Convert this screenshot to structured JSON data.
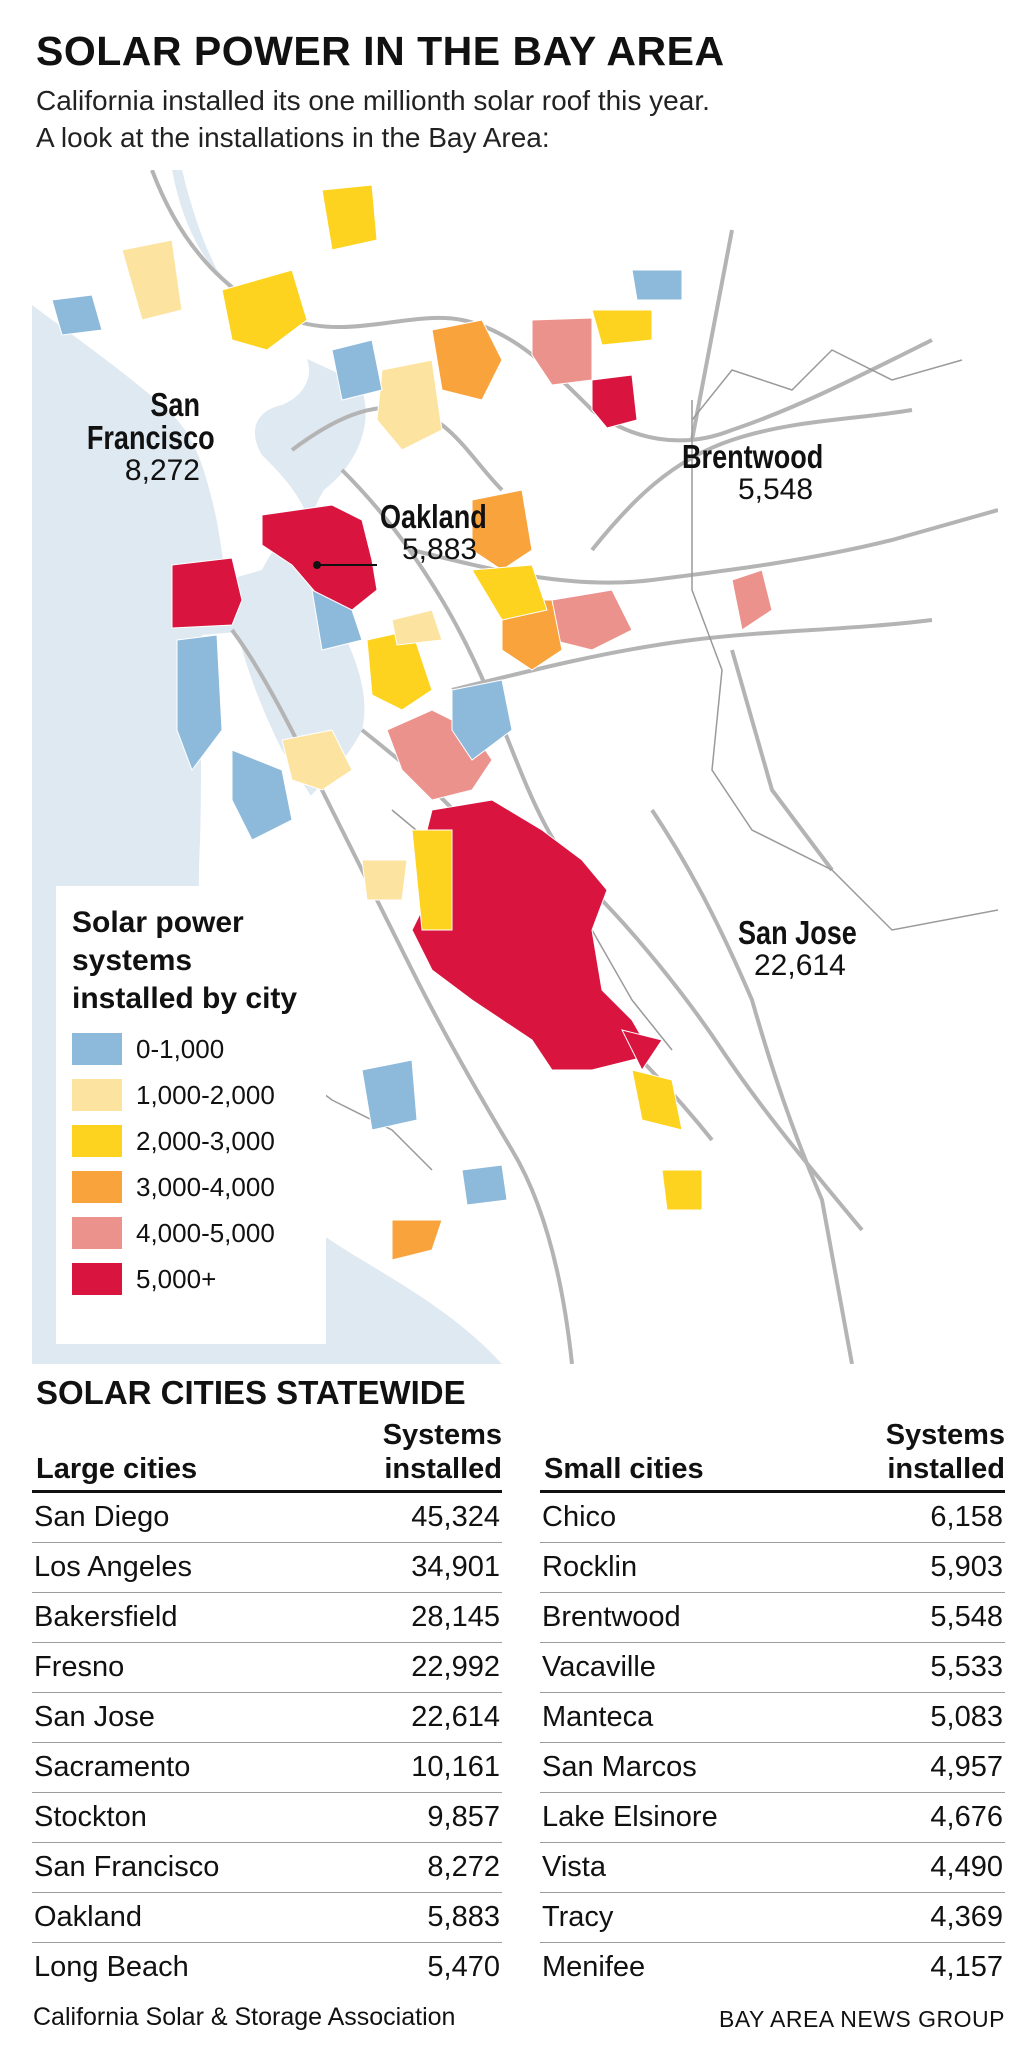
{
  "header": {
    "title": "SOLAR POWER IN THE BAY AREA",
    "subtitle_line1": "California installed its one millionth solar roof this year.",
    "subtitle_line2": "A look at the installations in the Bay Area:"
  },
  "colors": {
    "water": "#dfe9f2",
    "land": "#ffffff",
    "roads": "#b4b4b4",
    "cat_0_1000": "#8db9db",
    "cat_1000_2000": "#fde3a0",
    "cat_2000_3000": "#fdd31f",
    "cat_3000_4000": "#f9a33c",
    "cat_4000_5000": "#ec928c",
    "cat_5000_plus": "#d9143f"
  },
  "map": {
    "labels": [
      {
        "id": "san-francisco",
        "name_line1": "San",
        "name_line2": "Francisco",
        "value": "8,272"
      },
      {
        "id": "oakland",
        "name": "Oakland",
        "value": "5,883"
      },
      {
        "id": "brentwood",
        "name": "Brentwood",
        "value": "5,548"
      },
      {
        "id": "san-jose",
        "name": "San Jose",
        "value": "22,614"
      }
    ]
  },
  "legend": {
    "title": "Solar power systems installed by city",
    "items": [
      {
        "label": "0-1,000",
        "color": "#8db9db"
      },
      {
        "label": "1,000-2,000",
        "color": "#fde3a0"
      },
      {
        "label": "2,000-3,000",
        "color": "#fdd31f"
      },
      {
        "label": "3,000-4,000",
        "color": "#f9a33c"
      },
      {
        "label": "4,000-5,000",
        "color": "#ec928c"
      },
      {
        "label": "5,000+",
        "color": "#d9143f"
      }
    ]
  },
  "statewide": {
    "title": "SOLAR CITIES STATEWIDE",
    "column_header_line1": "Systems",
    "column_header_line2": "installed",
    "large": {
      "label": "Large cities",
      "rows": [
        {
          "city": "San Diego",
          "value": "45,324"
        },
        {
          "city": "Los Angeles",
          "value": "34,901"
        },
        {
          "city": "Bakersfield",
          "value": "28,145"
        },
        {
          "city": "Fresno",
          "value": "22,992"
        },
        {
          "city": "San Jose",
          "value": "22,614"
        },
        {
          "city": "Sacramento",
          "value": "10,161"
        },
        {
          "city": "Stockton",
          "value": "9,857"
        },
        {
          "city": "San Francisco",
          "value": "8,272"
        },
        {
          "city": "Oakland",
          "value": "5,883"
        },
        {
          "city": "Long Beach",
          "value": "5,470"
        }
      ]
    },
    "small": {
      "label": "Small cities",
      "rows": [
        {
          "city": "Chico",
          "value": "6,158"
        },
        {
          "city": "Rocklin",
          "value": "5,903"
        },
        {
          "city": "Brentwood",
          "value": "5,548"
        },
        {
          "city": "Vacaville",
          "value": "5,533"
        },
        {
          "city": "Manteca",
          "value": "5,083"
        },
        {
          "city": "San Marcos",
          "value": "4,957"
        },
        {
          "city": "Lake Elsinore",
          "value": "4,676"
        },
        {
          "city": "Vista",
          "value": "4,490"
        },
        {
          "city": "Tracy",
          "value": "4,369"
        },
        {
          "city": "Menifee",
          "value": "4,157"
        }
      ]
    }
  },
  "footer": {
    "source": "California Solar & Storage Association",
    "credit": "BAY AREA NEWS GROUP"
  }
}
